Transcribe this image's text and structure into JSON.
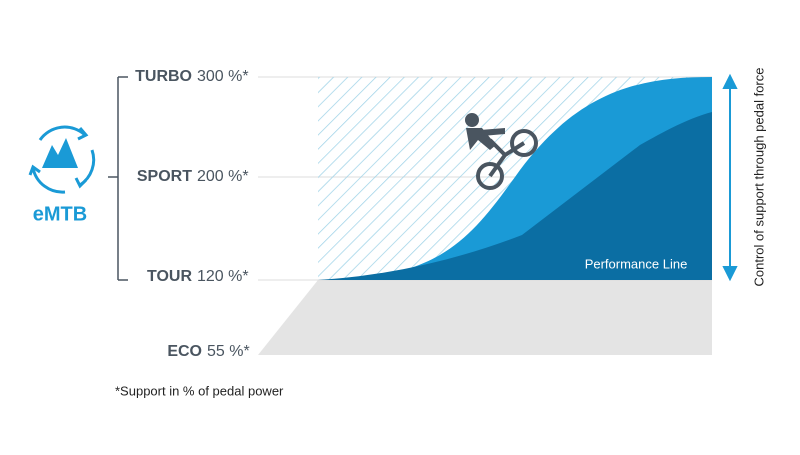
{
  "levels": [
    {
      "name": "TURBO",
      "value": "300 %*"
    },
    {
      "name": "SPORT",
      "value": "200 %*"
    },
    {
      "name": "TOUR",
      "value": "120 %*"
    },
    {
      "name": "ECO",
      "value": "55 %*"
    }
  ],
  "mode": "eMTB",
  "curve_label": "Performance Line",
  "axis_label": "Control of support through pedal force",
  "footnote": "*Support in % of pedal power"
}
